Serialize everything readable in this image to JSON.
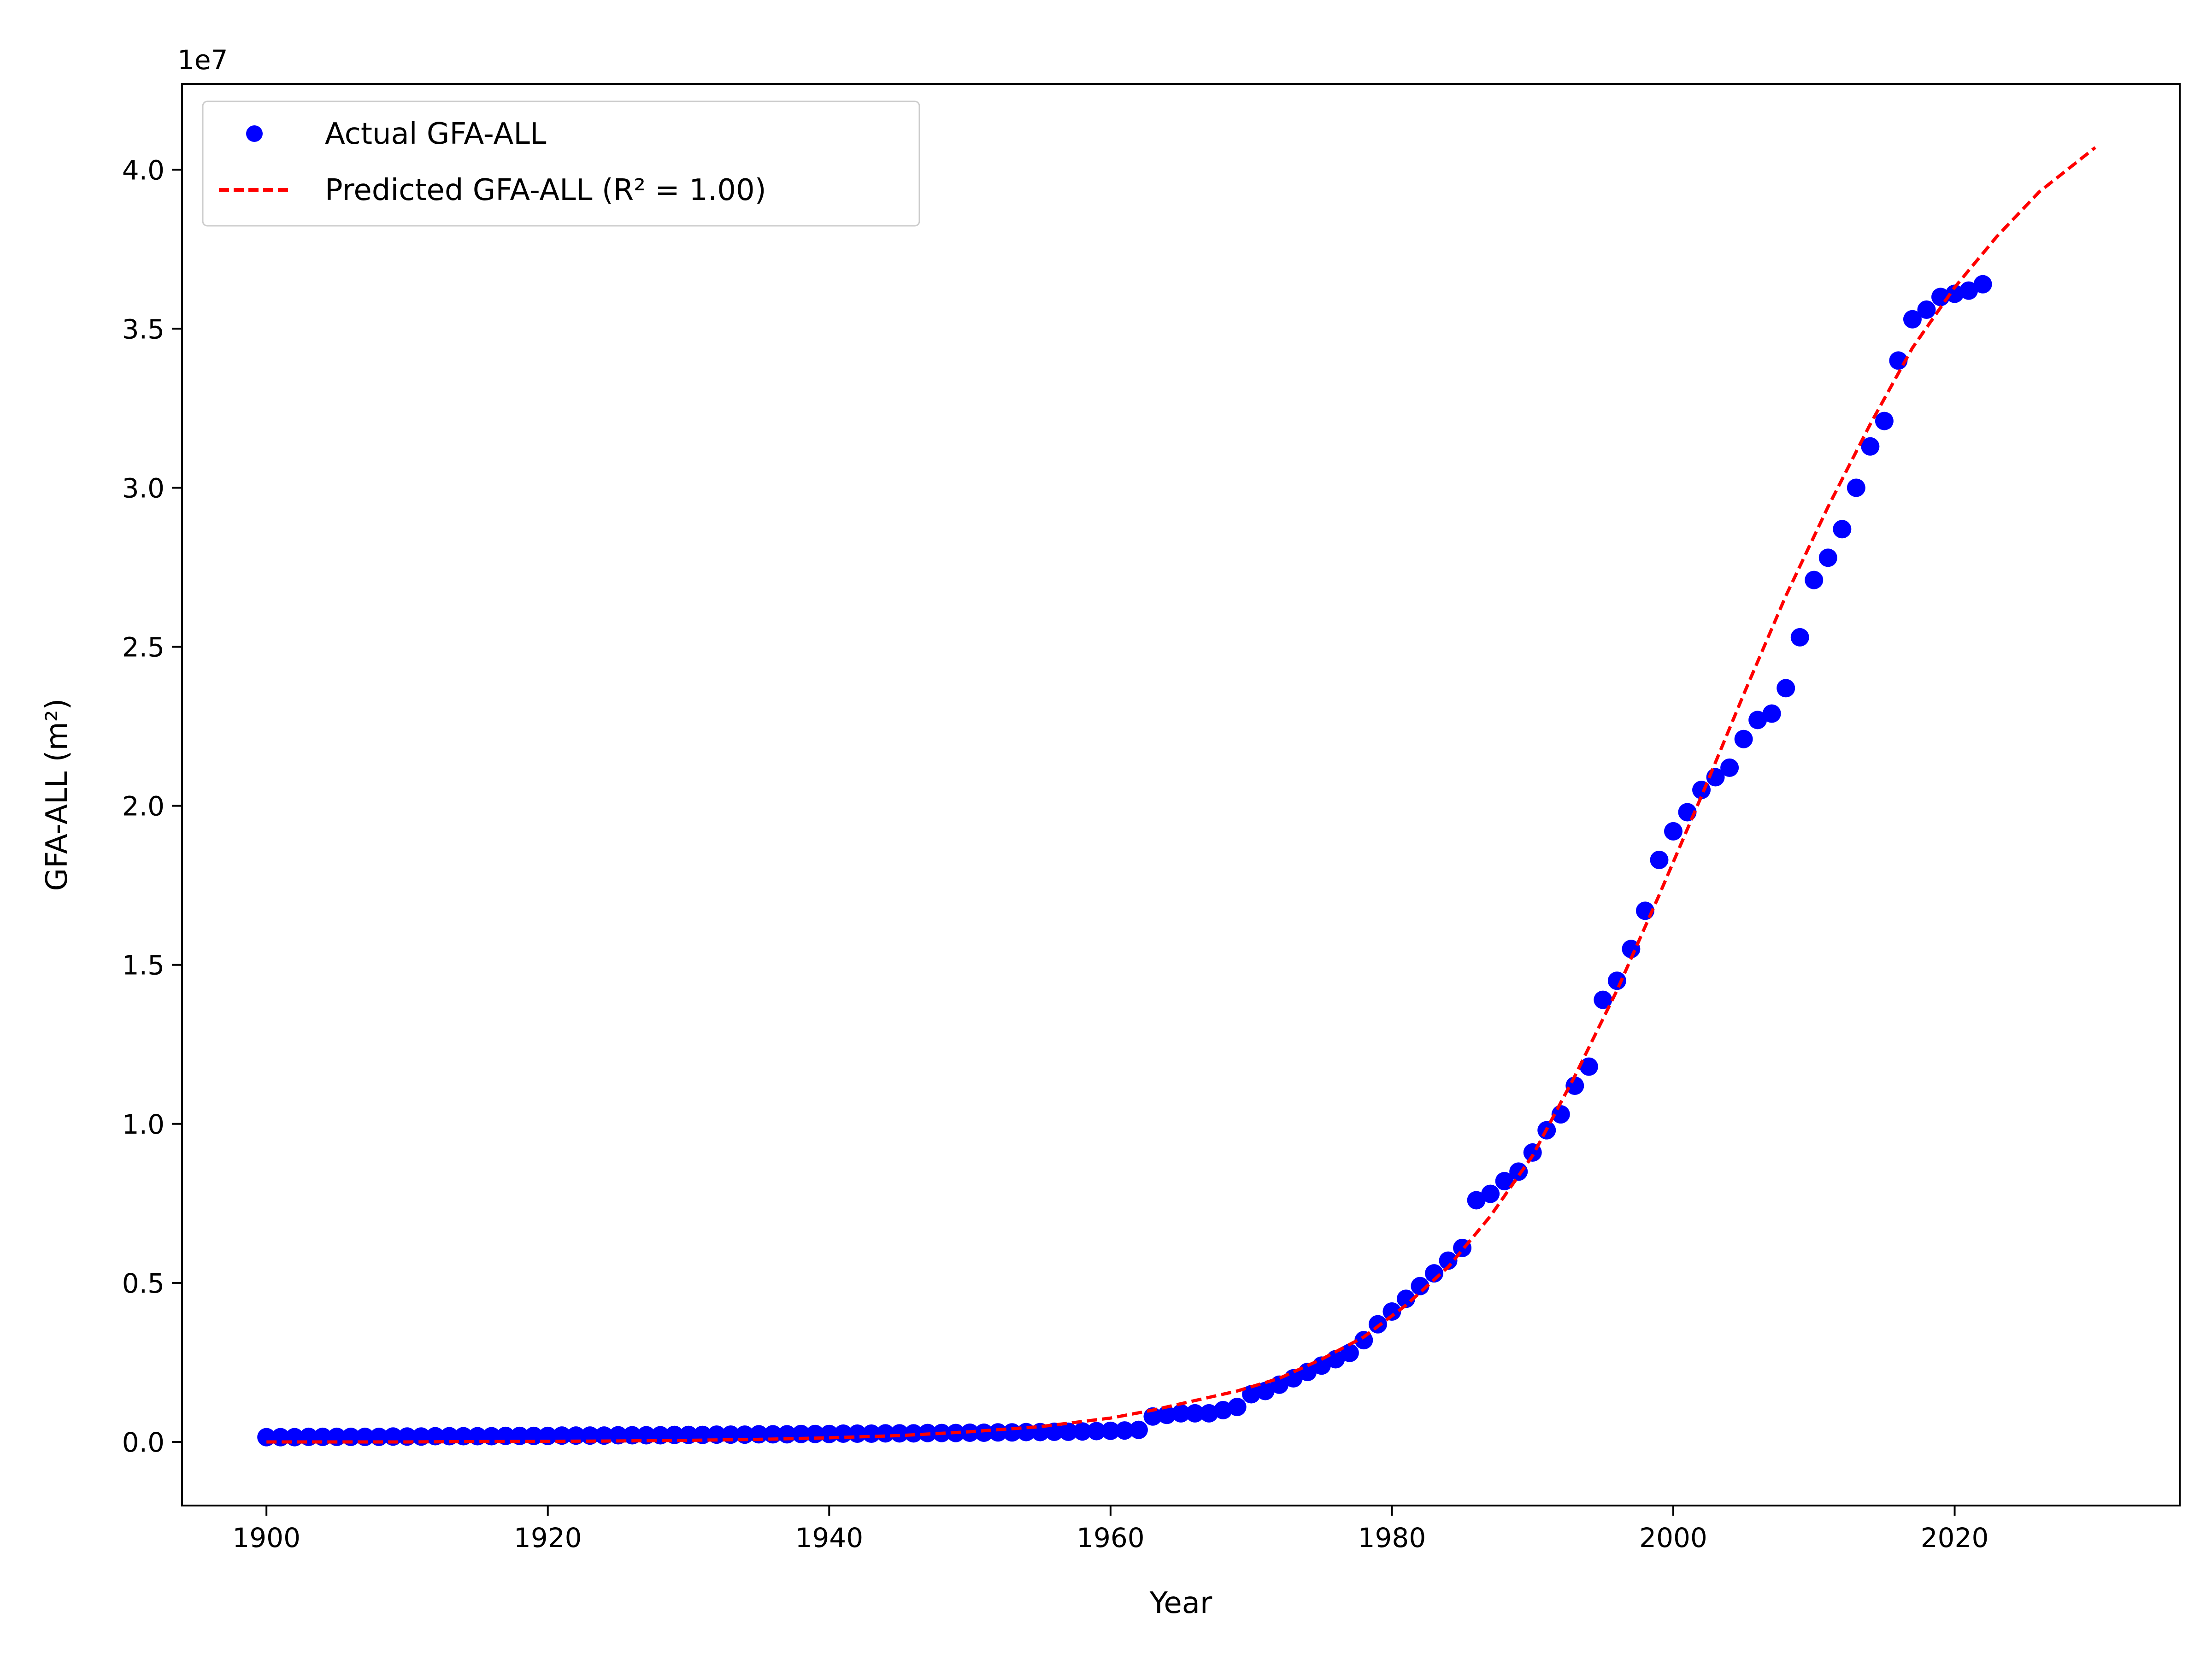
{
  "chart_data": {
    "type": "scatter",
    "xlabel": "Year",
    "ylabel": "GFA-ALL (m²)",
    "offset_label": "1e7",
    "xlim": [
      1894,
      2036
    ],
    "ylim": [
      -0.2,
      4.27
    ],
    "y_multiplier": 10000000,
    "x_ticks": [
      1900,
      1920,
      1940,
      1960,
      1980,
      2000,
      2020
    ],
    "x_tick_labels": [
      "1900",
      "1920",
      "1940",
      "1960",
      "1980",
      "2000",
      "2020"
    ],
    "y_ticks": [
      0.0,
      0.5,
      1.0,
      1.5,
      2.0,
      2.5,
      3.0,
      3.5,
      4.0
    ],
    "y_tick_labels": [
      "0.0",
      "0.5",
      "1.0",
      "1.5",
      "2.0",
      "2.5",
      "3.0",
      "3.5",
      "4.0"
    ],
    "grid": false,
    "legend_position": "top-left",
    "series": [
      {
        "name": "Actual GFA-ALL",
        "kind": "scatter",
        "color": "#0000ff",
        "x": [
          1900,
          1901,
          1902,
          1903,
          1904,
          1905,
          1906,
          1907,
          1908,
          1909,
          1910,
          1911,
          1912,
          1913,
          1914,
          1915,
          1916,
          1917,
          1918,
          1919,
          1920,
          1921,
          1922,
          1923,
          1924,
          1925,
          1926,
          1927,
          1928,
          1929,
          1930,
          1931,
          1932,
          1933,
          1934,
          1935,
          1936,
          1937,
          1938,
          1939,
          1940,
          1941,
          1942,
          1943,
          1944,
          1945,
          1946,
          1947,
          1948,
          1949,
          1950,
          1951,
          1952,
          1953,
          1954,
          1955,
          1956,
          1957,
          1958,
          1959,
          1960,
          1961,
          1962,
          1963,
          1964,
          1965,
          1966,
          1967,
          1968,
          1969,
          1970,
          1971,
          1972,
          1973,
          1974,
          1975,
          1976,
          1977,
          1978,
          1979,
          1980,
          1981,
          1982,
          1983,
          1984,
          1985,
          1986,
          1987,
          1988,
          1989,
          1990,
          1991,
          1992,
          1993,
          1994,
          1995,
          1996,
          1997,
          1998,
          1999,
          2000,
          2001,
          2002,
          2003,
          2004,
          2005,
          2006,
          2007,
          2008,
          2009,
          2010,
          2011,
          2012,
          2013,
          2014,
          2015,
          2016,
          2017,
          2018,
          2019,
          2020,
          2021,
          2022
        ],
        "y": [
          0.015,
          0.015,
          0.015,
          0.016,
          0.016,
          0.016,
          0.016,
          0.016,
          0.016,
          0.017,
          0.017,
          0.017,
          0.018,
          0.018,
          0.018,
          0.018,
          0.018,
          0.019,
          0.019,
          0.019,
          0.019,
          0.02,
          0.02,
          0.02,
          0.02,
          0.021,
          0.021,
          0.021,
          0.021,
          0.022,
          0.022,
          0.022,
          0.023,
          0.023,
          0.023,
          0.024,
          0.024,
          0.024,
          0.025,
          0.025,
          0.025,
          0.026,
          0.026,
          0.026,
          0.027,
          0.027,
          0.027,
          0.028,
          0.028,
          0.028,
          0.029,
          0.029,
          0.03,
          0.03,
          0.031,
          0.031,
          0.032,
          0.032,
          0.033,
          0.034,
          0.035,
          0.036,
          0.038,
          0.08,
          0.085,
          0.09,
          0.09,
          0.09,
          0.1,
          0.11,
          0.15,
          0.16,
          0.18,
          0.2,
          0.22,
          0.24,
          0.26,
          0.28,
          0.32,
          0.37,
          0.41,
          0.45,
          0.49,
          0.53,
          0.57,
          0.61,
          0.76,
          0.78,
          0.82,
          0.85,
          0.91,
          0.98,
          1.03,
          1.12,
          1.18,
          1.39,
          1.45,
          1.55,
          1.67,
          1.83,
          1.92,
          1.98,
          2.05,
          2.09,
          2.12,
          2.21,
          2.27,
          2.29,
          2.37,
          2.53,
          2.71,
          2.78,
          2.87,
          3.0,
          3.13,
          3.21,
          3.4,
          3.53,
          3.56,
          3.6,
          3.61,
          3.62,
          3.64
        ]
      },
      {
        "name": "Predicted GFA-ALL (R² = 1.00)",
        "kind": "line",
        "style": "dashed",
        "color": "#ff0000",
        "x": [
          1900,
          1905,
          1910,
          1915,
          1920,
          1925,
          1930,
          1935,
          1940,
          1945,
          1950,
          1955,
          1960,
          1963,
          1966,
          1969,
          1972,
          1975,
          1978,
          1981,
          1984,
          1987,
          1990,
          1993,
          1996,
          1999,
          2002,
          2005,
          2008,
          2011,
          2014,
          2017,
          2020,
          2023,
          2026,
          2030
        ],
        "y": [
          0.0,
          0.0,
          0.0,
          0.001,
          0.002,
          0.003,
          0.005,
          0.008,
          0.013,
          0.02,
          0.032,
          0.048,
          0.075,
          0.1,
          0.13,
          0.16,
          0.2,
          0.26,
          0.33,
          0.43,
          0.55,
          0.71,
          0.9,
          1.15,
          1.42,
          1.72,
          2.03,
          2.35,
          2.66,
          2.94,
          3.2,
          3.44,
          3.63,
          3.79,
          3.93,
          4.07
        ]
      }
    ]
  }
}
